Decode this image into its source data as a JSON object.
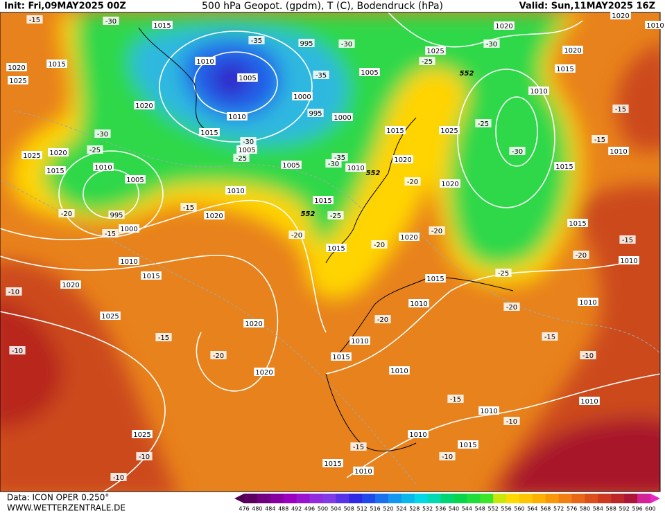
{
  "header": {
    "init": "Init: Fri,09MAY2025 00Z",
    "title": "500 hPa Geopot. (gpdm), T (C), Bodendruck (hPa)",
    "valid": "Valid: Sun,11MAY2025 16Z"
  },
  "footer": {
    "data": "Data: ICON OPER 0.250°",
    "site": "WWW.WETTERZENTRALE.DE"
  },
  "legend": {
    "values": [
      476,
      480,
      484,
      488,
      492,
      496,
      500,
      504,
      508,
      512,
      516,
      520,
      524,
      528,
      532,
      536,
      540,
      544,
      548,
      552,
      556,
      560,
      564,
      568,
      572,
      576,
      580,
      584,
      588,
      592,
      596,
      600
    ]
  },
  "map_labels": [
    "1015",
    "-30",
    "1010",
    "-35",
    "995",
    "-30",
    "1005",
    "-35",
    "1000",
    "995",
    "1000",
    "1010",
    "1020",
    "1015",
    "1005",
    "-30",
    "-25",
    "1005",
    "-30",
    "1010",
    "-35",
    "1005",
    "1025",
    "-25",
    "1020",
    "-30",
    "1020",
    "1015",
    "1010",
    "-25",
    "-30",
    "1025",
    "1015",
    "1020",
    "-20",
    "1020",
    "1015",
    "-15",
    "-15",
    "1010",
    "1015",
    "-15",
    "-20",
    "1010",
    "1015",
    "-25",
    "1010",
    "1020",
    "-15",
    "-20",
    "1015",
    "-20",
    "1020",
    "-20",
    "-25",
    "1015",
    "1010",
    "-20",
    "1010",
    "-20",
    "1010",
    "-15",
    "-10",
    "1015",
    "1010",
    "1020",
    "-20",
    "1020",
    "-15",
    "1025",
    "1020",
    "1015",
    "1010",
    "-10",
    "-10",
    "-15",
    "1010",
    "1010",
    "-10",
    "1010",
    "1025",
    "1015",
    "-10",
    "-10",
    "-10",
    "1015",
    "1010",
    "-15",
    "1020",
    "1025",
    "1015",
    "-15",
    "1025",
    "1020",
    "1015",
    "1010",
    "1005",
    "995",
    "-30",
    "-25",
    "-20",
    "1000",
    "-15",
    "552",
    "552",
    "552",
    "1010",
    "1020"
  ]
}
